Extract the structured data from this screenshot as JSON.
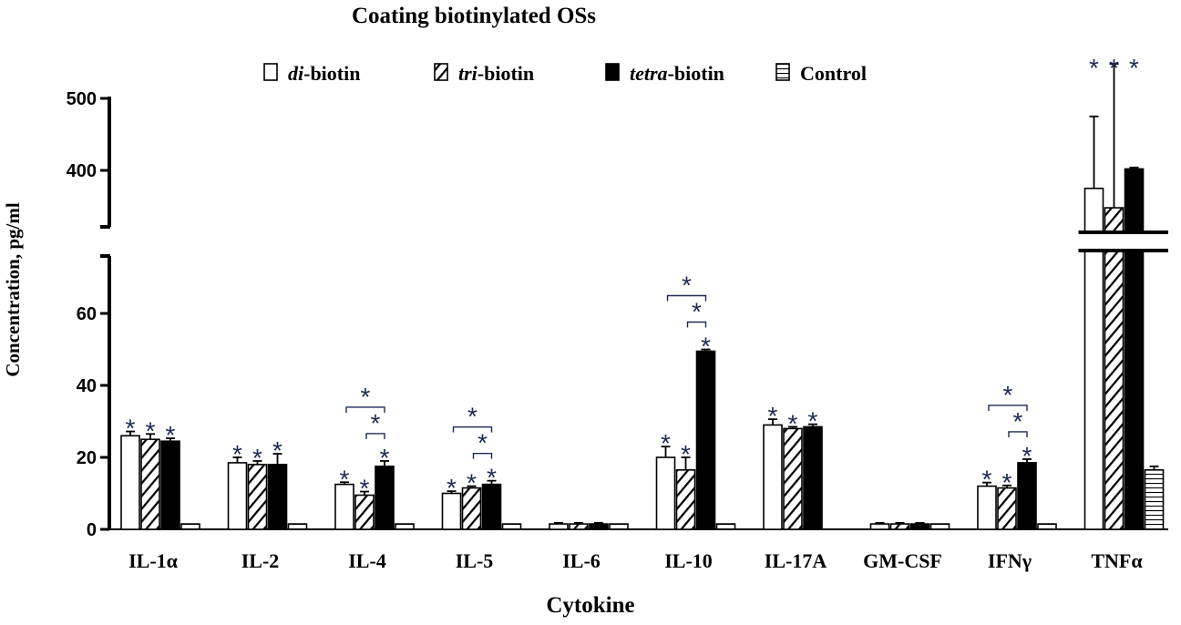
{
  "chart_data": {
    "type": "bar",
    "title": "Coating biotinylated OSs",
    "xlabel": "Cytokine",
    "ylabel": "Concentration, pg/ml",
    "categories": [
      "IL-1α",
      "IL-2",
      "IL-4",
      "IL-5",
      "IL-6",
      "IL-10",
      "IL-17A",
      "GM-CSF",
      "IFNγ",
      "TNFα"
    ],
    "axis": {
      "lower_range": [
        0,
        75
      ],
      "lower_ticks": [
        "0",
        "20",
        "40",
        "60"
      ],
      "upper_range": [
        300,
        525
      ],
      "upper_ticks": [
        "400",
        "500"
      ],
      "broken": true
    },
    "legend": [
      {
        "prefix": "di",
        "suffix": "-biotin",
        "fill": "white"
      },
      {
        "prefix": "tri",
        "suffix": "-biotin",
        "fill": "diagonal"
      },
      {
        "prefix": "tetra",
        "suffix": "-biotin",
        "fill": "black"
      },
      {
        "prefix": "",
        "suffix": "Control",
        "fill": "horizontal"
      }
    ],
    "series": [
      {
        "name": "di-biotin",
        "values": [
          26,
          18.5,
          12.5,
          10,
          1.5,
          20,
          29,
          1.5,
          12,
          375
        ],
        "errors": [
          1.2,
          1.5,
          0.6,
          0.6,
          0.3,
          3,
          1.6,
          0.3,
          1,
          100
        ]
      },
      {
        "name": "tri-biotin",
        "values": [
          25,
          18,
          9.5,
          11.5,
          1.5,
          16.5,
          28,
          1.5,
          11.5,
          348
        ],
        "errors": [
          1.5,
          1,
          1,
          0.5,
          0.3,
          3.5,
          0.5,
          0.3,
          0.7,
          200
        ]
      },
      {
        "name": "tetra-biotin",
        "values": [
          24.5,
          18,
          17.5,
          12.5,
          1.5,
          49.5,
          28.5,
          1.5,
          18.5,
          402
        ],
        "errors": [
          0.8,
          3,
          1.5,
          1,
          0.3,
          0.5,
          0.7,
          0.3,
          1,
          2
        ]
      },
      {
        "name": "Control",
        "values": [
          1.5,
          1.5,
          1.5,
          1.5,
          1.5,
          1.5,
          null,
          1.5,
          1.5,
          16.5
        ],
        "errors": [
          0,
          0,
          0,
          0,
          0,
          0,
          0,
          0,
          0,
          1
        ]
      }
    ],
    "significance": {
      "symbol": "*",
      "bar_marks": [
        {
          "category": 0,
          "series": [
            0,
            1,
            2
          ]
        },
        {
          "category": 1,
          "series": [
            0,
            1,
            2
          ]
        },
        {
          "category": 2,
          "series": [
            0,
            1,
            2
          ]
        },
        {
          "category": 3,
          "series": [
            0,
            1,
            2
          ]
        },
        {
          "category": 5,
          "series": [
            0,
            1,
            2
          ]
        },
        {
          "category": 6,
          "series": [
            0,
            1,
            2
          ]
        },
        {
          "category": 8,
          "series": [
            0,
            1,
            2
          ]
        },
        {
          "category": 9,
          "series": [
            0,
            1,
            2
          ]
        }
      ],
      "brackets": [
        {
          "category": 2,
          "from": 0,
          "to": 2,
          "level": 2
        },
        {
          "category": 2,
          "from": 1,
          "to": 2,
          "level": 1
        },
        {
          "category": 3,
          "from": 0,
          "to": 2,
          "level": 2
        },
        {
          "category": 3,
          "from": 1,
          "to": 2,
          "level": 1
        },
        {
          "category": 5,
          "from": 0,
          "to": 2,
          "level": 2
        },
        {
          "category": 5,
          "from": 1,
          "to": 2,
          "level": 1
        },
        {
          "category": 8,
          "from": 0,
          "to": 2,
          "level": 2
        },
        {
          "category": 8,
          "from": 1,
          "to": 2,
          "level": 1
        }
      ]
    }
  }
}
